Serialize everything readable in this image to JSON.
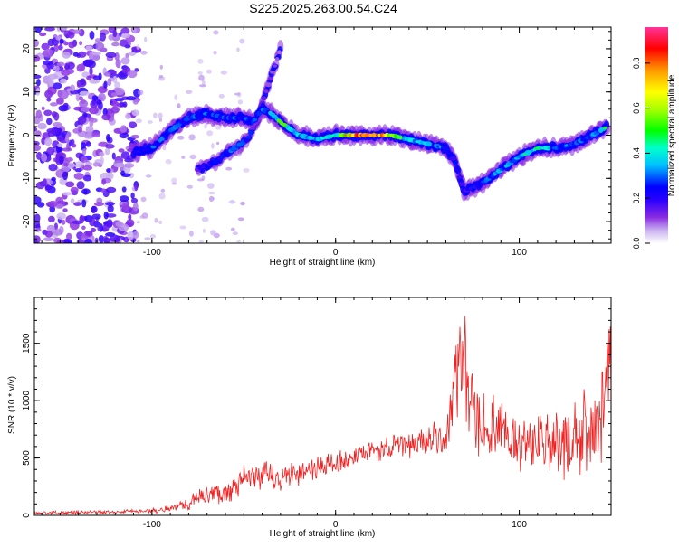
{
  "title": "S225.2025.263.00.54.C24",
  "colors": {
    "snr_line": "#ee2222",
    "axis": "#000000",
    "colormap": [
      "#ffffff",
      "#c9b0f0",
      "#8a2be2",
      "#0000ff",
      "#00ffff",
      "#00ff00",
      "#ffff00",
      "#ff8800",
      "#ff0000",
      "#ff3399"
    ]
  },
  "chart_data": [
    {
      "type": "heatmap",
      "xlabel": "Height of straight line (km)",
      "ylabel": "Frequency (Hz)",
      "xlim": [
        -164,
        150
      ],
      "ylim": [
        -25,
        25
      ],
      "x_ticks": [
        -100,
        0,
        100
      ],
      "y_ticks": [
        -20,
        -10,
        0,
        10,
        20
      ],
      "colorbar": {
        "label": "Normalized spectral amplitude",
        "range": [
          0,
          0.96
        ],
        "ticks": [
          0.0,
          0.2,
          0.4,
          0.6,
          0.8
        ],
        "colormap": "rainbow"
      },
      "ridge": {
        "x": [
          -110,
          -100,
          -90,
          -80,
          -70,
          -60,
          -50,
          -45,
          -40,
          -35,
          -30,
          -20,
          -10,
          0,
          10,
          20,
          30,
          40,
          50,
          60,
          65,
          70,
          75,
          80,
          90,
          100,
          110,
          120,
          130,
          140,
          148
        ],
        "y": [
          -4,
          -3,
          1,
          4,
          5,
          4,
          4,
          3,
          6,
          5,
          3,
          0,
          -1,
          0,
          0,
          0,
          0,
          -1,
          -2,
          -3,
          -6,
          -13,
          -12,
          -11,
          -8,
          -5,
          -3,
          -3,
          -2,
          0,
          2
        ],
        "amplitude": [
          0.25,
          0.3,
          0.3,
          0.3,
          0.3,
          0.3,
          0.3,
          0.3,
          0.3,
          0.35,
          0.6,
          0.4,
          0.35,
          0.5,
          0.9,
          0.96,
          0.6,
          0.45,
          0.35,
          0.3,
          0.25,
          0.2,
          0.25,
          0.3,
          0.35,
          0.4,
          0.45,
          0.35,
          0.3,
          0.3,
          0.5
        ]
      },
      "secondary_ridge": {
        "x": [
          -75,
          -65,
          -55,
          -48,
          -42,
          -38,
          -33,
          -30
        ],
        "y": [
          -8,
          -6,
          -3,
          -1,
          4,
          10,
          16,
          20
        ],
        "amplitude": [
          0.2,
          0.25,
          0.3,
          0.3,
          0.2,
          0.15,
          0.12,
          0.1
        ]
      },
      "noise_region": {
        "x_range": [
          -164,
          -108
        ],
        "amplitude": 0.1
      }
    },
    {
      "type": "line",
      "xlabel": "Height of straight line (km)",
      "ylabel": "SNR (10 * v/v)",
      "xlim": [
        -164,
        150
      ],
      "ylim": [
        0,
        1900
      ],
      "x_ticks": [
        -100,
        0,
        100
      ],
      "y_ticks": [
        0,
        500,
        1000,
        1500
      ],
      "series": [
        {
          "x": [
            -164,
            -140,
            -120,
            -100,
            -90,
            -80,
            -70,
            -60,
            -50,
            -40,
            -30,
            -20,
            -10,
            0,
            10,
            20,
            30,
            40,
            50,
            60,
            63,
            66,
            68,
            70,
            72,
            74,
            80,
            85,
            90,
            100,
            110,
            120,
            130,
            140,
            145,
            150
          ],
          "y": [
            20,
            25,
            30,
            40,
            60,
            110,
            180,
            200,
            300,
            350,
            320,
            380,
            420,
            450,
            500,
            560,
            590,
            620,
            650,
            680,
            900,
            1200,
            1500,
            1400,
            1000,
            850,
            800,
            760,
            700,
            650,
            620,
            600,
            650,
            720,
            900,
            1450
          ],
          "amplitude": [
            15,
            15,
            15,
            20,
            30,
            60,
            80,
            100,
            120,
            130,
            120,
            110,
            100,
            100,
            90,
            90,
            100,
            120,
            140,
            160,
            260,
            400,
            500,
            450,
            400,
            350,
            300,
            280,
            260,
            240,
            260,
            300,
            320,
            380,
            420,
            350
          ]
        }
      ]
    }
  ]
}
